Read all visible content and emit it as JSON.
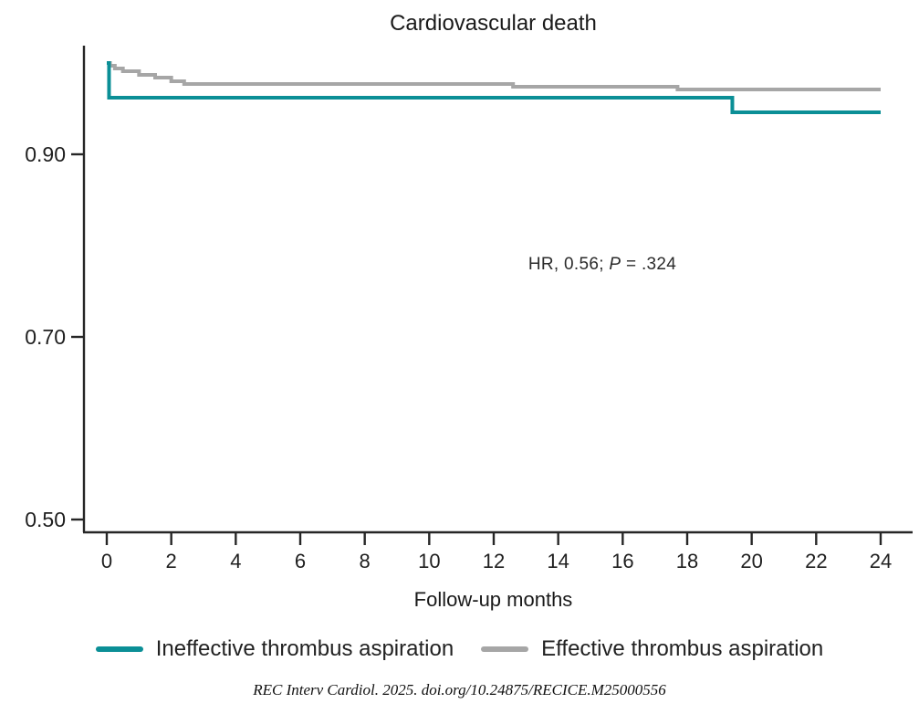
{
  "title": "Cardiovascular death",
  "annotation": {
    "prefix": "HR, 0.56; ",
    "p_label": "P",
    "suffix": " = .324"
  },
  "citation": {
    "text": "REC Interv Cardiol. 2025. doi.org/10.24875/RECICE.M25000556"
  },
  "colors": {
    "ineffective_teal": "#0b8f96",
    "effective_gray": "#a6a6a6",
    "axis": "#262626",
    "text": "#1f1f1f"
  },
  "chart_data": {
    "type": "line",
    "subtype": "kaplan-meier-step",
    "title": "Cardiovascular death",
    "xlabel": "Follow-up months",
    "ylabel": "",
    "xlim": [
      0,
      24
    ],
    "ylim": [
      0.486,
      1.02
    ],
    "grid": false,
    "legend_position": "bottom",
    "x_ticks": [
      0,
      2,
      4,
      6,
      8,
      10,
      12,
      14,
      16,
      18,
      20,
      22,
      24
    ],
    "y_ticks": [
      {
        "value": 0.9,
        "label": "0.90"
      },
      {
        "value": 0.7,
        "label": "0.70"
      },
      {
        "value": 0.5,
        "label": "0.50"
      }
    ],
    "annotation": "HR, 0.56; P = .324",
    "series": [
      {
        "name": "Effective thrombus aspiration",
        "color": "#a6a6a6",
        "end_x": 24,
        "steps": [
          [
            0,
            1.0
          ],
          [
            0.1,
            0.997
          ],
          [
            0.25,
            0.994
          ],
          [
            0.5,
            0.991
          ],
          [
            1.0,
            0.987
          ],
          [
            1.5,
            0.984
          ],
          [
            2.0,
            0.98
          ],
          [
            2.4,
            0.977
          ],
          [
            12.6,
            0.974
          ],
          [
            17.7,
            0.971
          ]
        ]
      },
      {
        "name": "Ineffective thrombus aspiration",
        "color": "#0b8f96",
        "end_x": 24,
        "steps": [
          [
            0,
            1.0
          ],
          [
            0.07,
            0.962
          ],
          [
            19.4,
            0.946
          ]
        ]
      }
    ]
  },
  "legend": {
    "items": [
      {
        "label": "Ineffective thrombus aspiration",
        "color": "#0b8f96"
      },
      {
        "label": "Effective thrombus aspiration",
        "color": "#a6a6a6"
      }
    ]
  }
}
